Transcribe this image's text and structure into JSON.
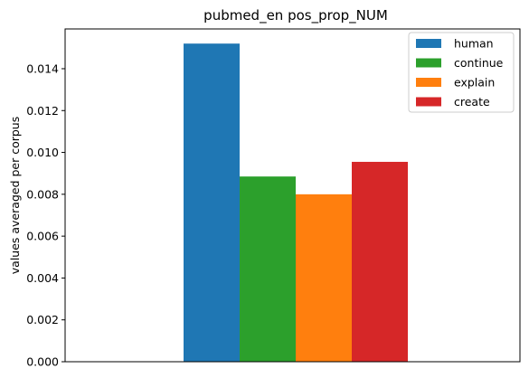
{
  "chart_data": {
    "type": "bar",
    "title": "pubmed_en pos_prop_NUM",
    "xlabel": "",
    "ylabel": "values averaged per corpus",
    "ylim": [
      0,
      0.0159
    ],
    "yticks": [
      "0.000",
      "0.002",
      "0.004",
      "0.006",
      "0.008",
      "0.010",
      "0.012",
      "0.014"
    ],
    "legend_position": "top-right",
    "grid": false,
    "series": [
      {
        "name": "human",
        "value": 0.0152,
        "color": "#1f77b4"
      },
      {
        "name": "continue",
        "value": 0.00885,
        "color": "#2ca02c"
      },
      {
        "name": "explain",
        "value": 0.008,
        "color": "#ff7f0e"
      },
      {
        "name": "create",
        "value": 0.00955,
        "color": "#d62728"
      }
    ]
  }
}
